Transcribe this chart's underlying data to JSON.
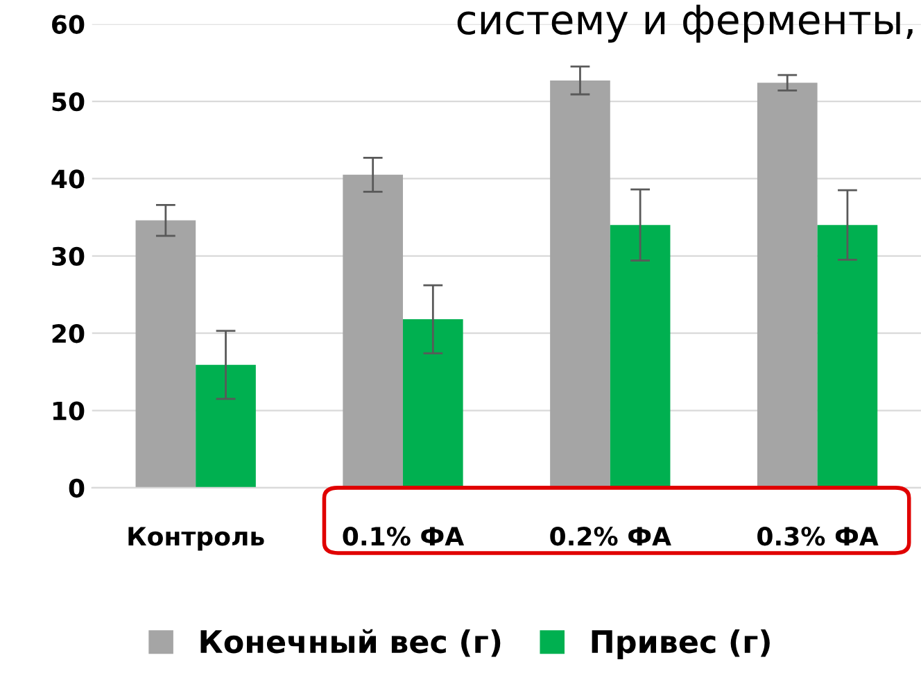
{
  "chart_data": {
    "type": "bar",
    "categories": [
      "Контроль",
      "0.1% ФА",
      "0.2% ФА",
      "0.3% ФА"
    ],
    "series": [
      {
        "name": "Конечный вес (г)",
        "color": "#a5a5a5",
        "values": [
          34.6,
          40.5,
          52.7,
          52.4
        ],
        "errors": [
          2.0,
          2.2,
          1.8,
          1.0
        ]
      },
      {
        "name": "Привес (г)",
        "color": "#00b050",
        "values": [
          15.9,
          21.8,
          34.0,
          34.0
        ],
        "errors": [
          4.4,
          4.4,
          4.6,
          4.5
        ]
      }
    ],
    "ylim": [
      0,
      60
    ],
    "yticks": [
      0,
      10,
      20,
      30,
      40,
      50,
      60
    ],
    "grid": "y",
    "legend": "bottom",
    "annotations": [
      "систему и ферменты,"
    ]
  }
}
